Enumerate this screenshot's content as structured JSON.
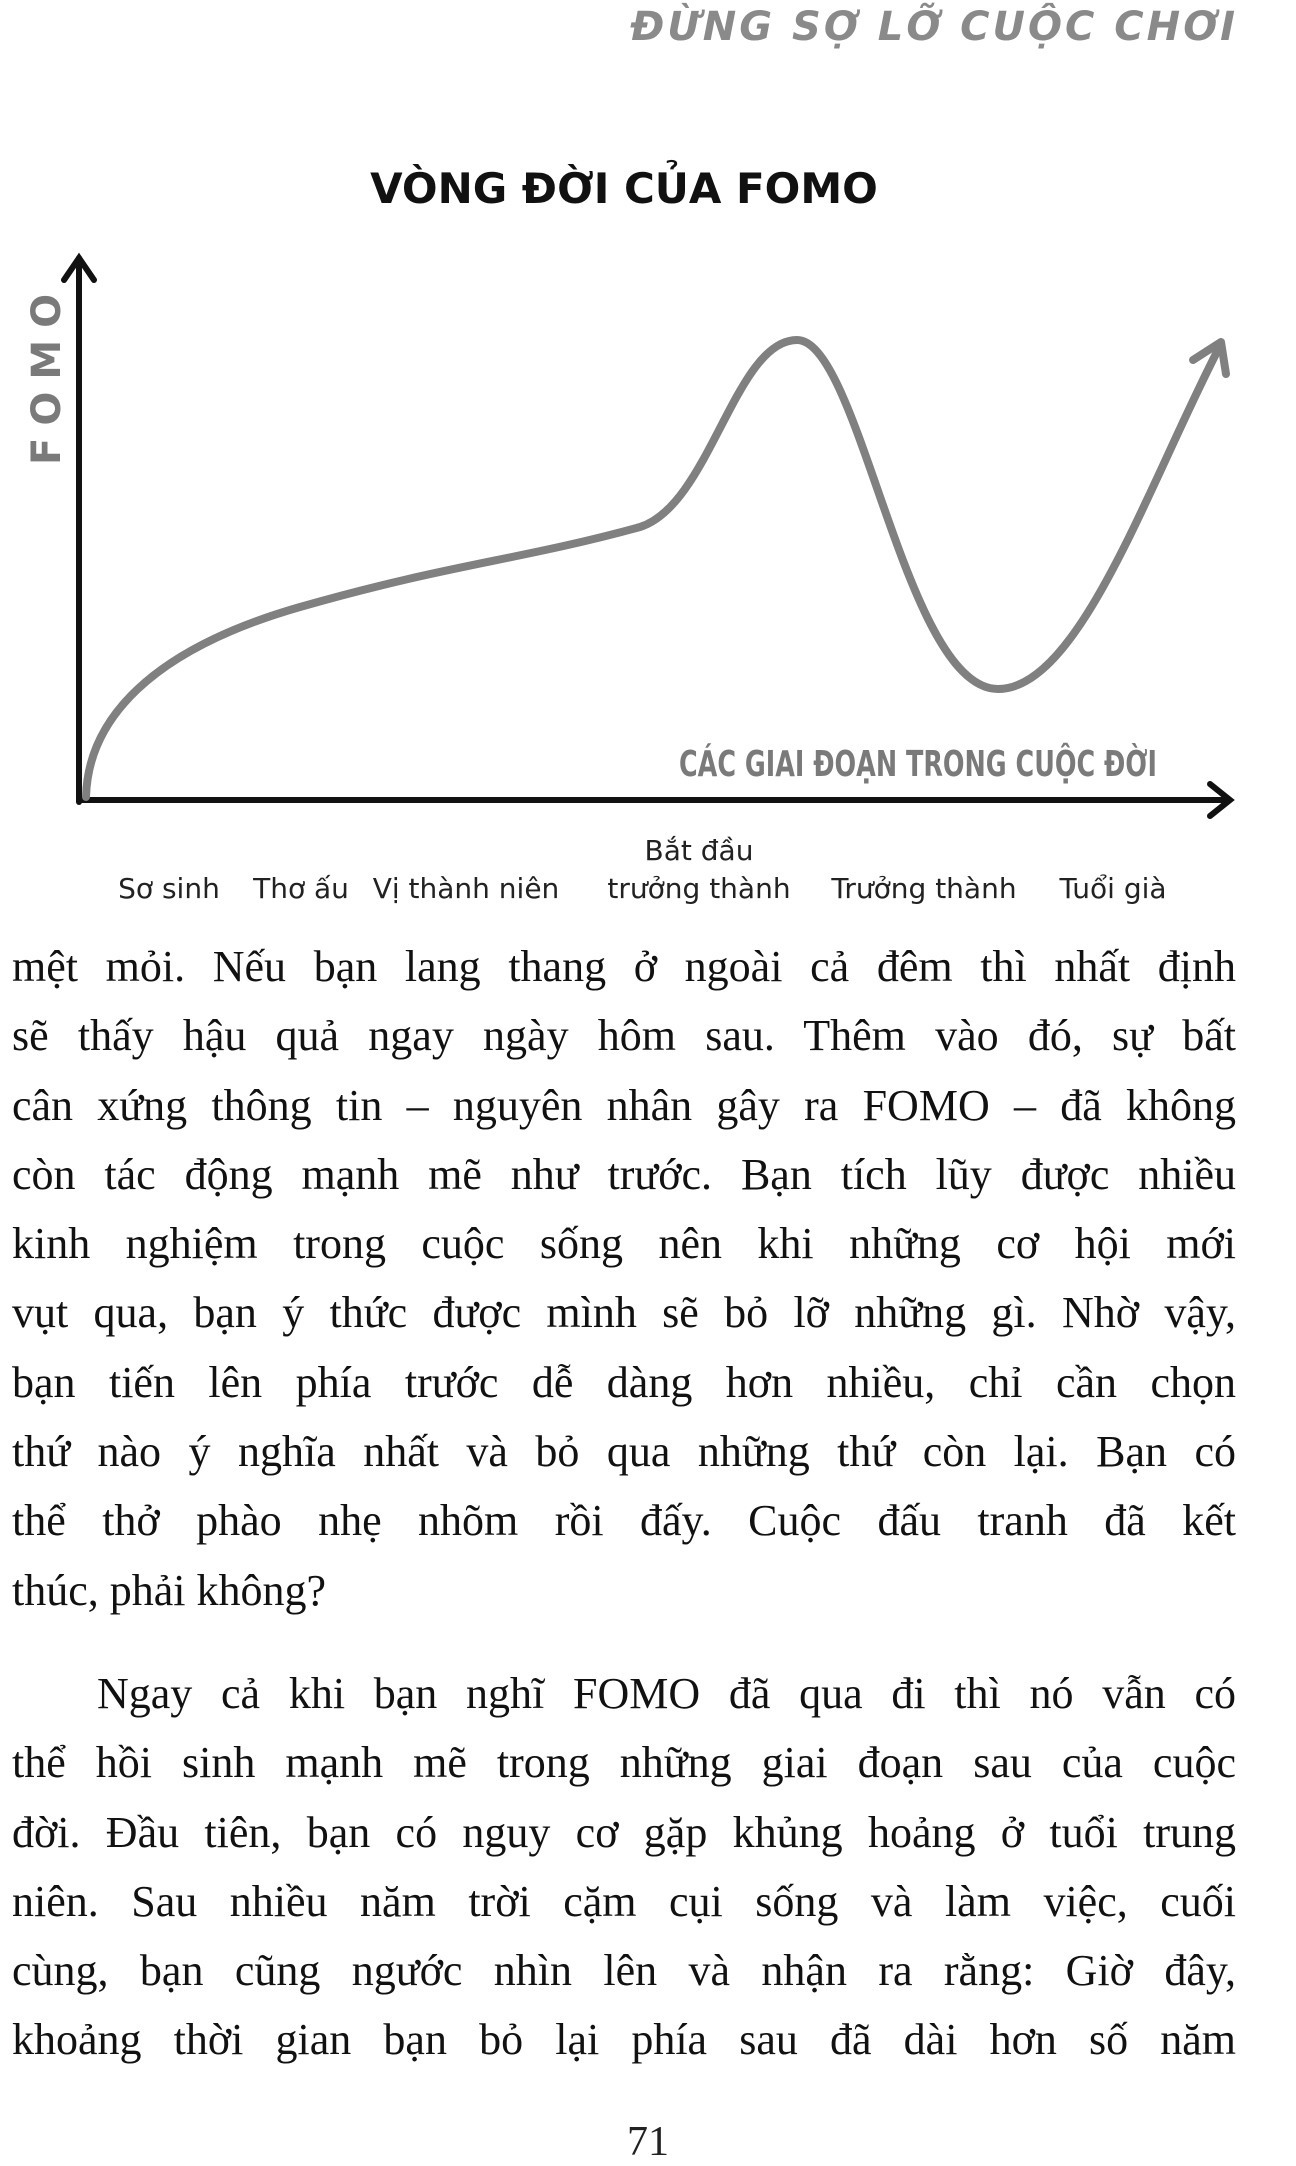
{
  "running_head": "ĐỪNG SỢ LỠ CUỘC CHƠI",
  "figure": {
    "title": "VÒNG ĐỜI CỦA FOMO",
    "y_axis_label": "FOMO",
    "x_axis_label": "CÁC GIAI ĐOẠN TRONG CUỘC ĐỜI",
    "stages": [
      "Sơ sinh",
      "Thơ ấu",
      "Vị thành niên",
      "Bắt đầu",
      "trưởng thành",
      "Trưởng thành",
      "Tuổi già"
    ],
    "curve_color": "#808080"
  },
  "paragraphs": [
    {
      "lines": [
        "mệt mỏi. Nếu bạn lang thang ở ngoài cả đêm thì nhất định",
        "sẽ thấy hậu quả ngay ngày hôm sau. Thêm vào đó, sự bất",
        "cân xứng thông tin – nguyên nhân gây ra FOMO – đã không",
        "còn tác động mạnh mẽ như trước. Bạn tích lũy được nhiều",
        "kinh nghiệm trong cuộc sống nên khi những cơ hội mới",
        "vụt qua, bạn ý thức được mình sẽ bỏ lỡ những gì. Nhờ vậy,",
        "bạn tiến lên phía trước dễ dàng hơn nhiều, chỉ cần chọn",
        "thứ nào ý nghĩa nhất và bỏ qua những thứ còn lại. Bạn có",
        "thể thở phào nhẹ nhõm rồi đấy. Cuộc đấu tranh đã kết",
        "thúc, phải không?"
      ]
    },
    {
      "lines": [
        "Ngay cả khi bạn nghĩ FOMO đã qua đi thì nó vẫn có",
        "thể hồi sinh mạnh mẽ trong những giai đoạn sau của cuộc",
        "đời. Đầu tiên, bạn có nguy cơ gặp khủng hoảng ở tuổi trung",
        "niên. Sau nhiều năm trời cặm cụi sống và làm việc, cuối",
        "cùng, bạn cũng ngước nhìn lên và nhận ra rằng: Giờ đây,",
        "khoảng thời gian bạn bỏ lại phía sau đã dài hơn số năm"
      ]
    }
  ],
  "page_number": "71"
}
